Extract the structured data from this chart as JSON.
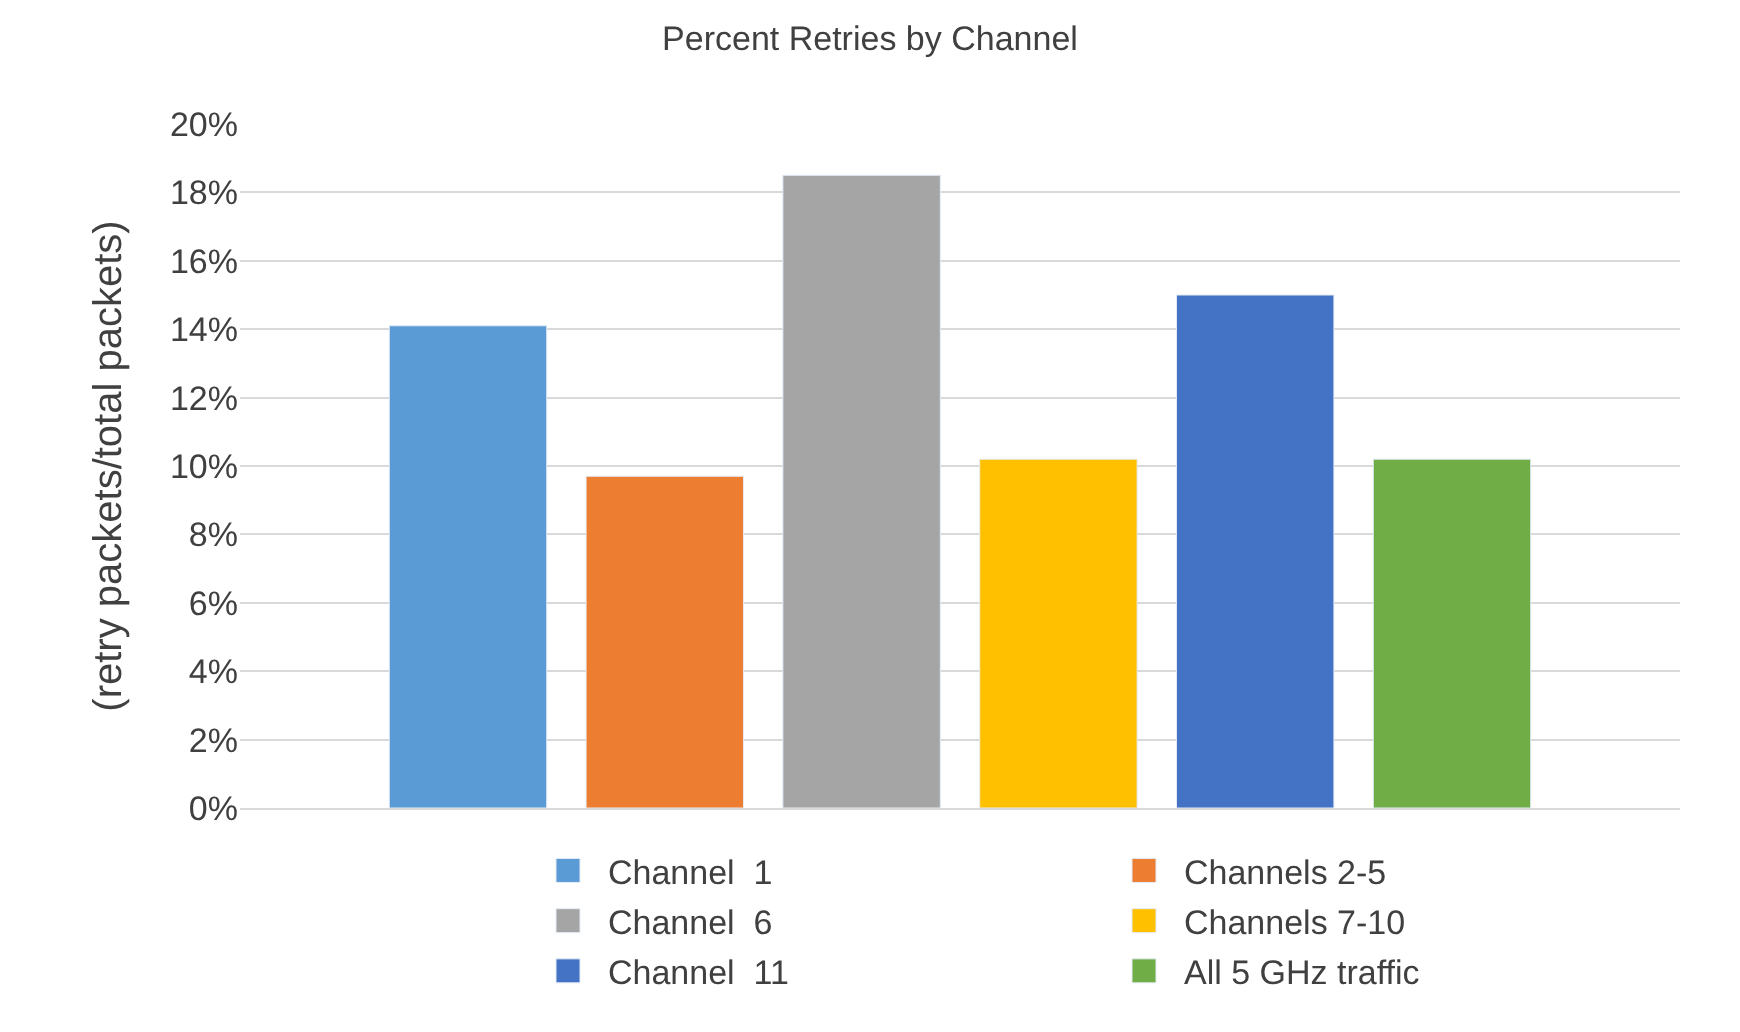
{
  "chart_data": {
    "type": "bar",
    "title": "Percent Retries by Channel",
    "ylabel": "(retry packets/total packets)",
    "categories": [
      null
    ],
    "series": [
      {
        "name": "Channel  1",
        "color": "#5b9bd5",
        "values": [
          14.1
        ]
      },
      {
        "name": "Channels 2-5",
        "color": "#ed7d31",
        "values": [
          9.7
        ]
      },
      {
        "name": "Channel  6",
        "color": "#a5a5a5",
        "values": [
          18.5
        ]
      },
      {
        "name": "Channels 7-10",
        "color": "#ffc000",
        "values": [
          10.2
        ]
      },
      {
        "name": "Channel  11",
        "color": "#4472c4",
        "values": [
          15.0
        ]
      },
      {
        "name": "All 5 GHz traffic",
        "color": "#70ad47",
        "values": [
          10.2
        ]
      }
    ],
    "ylim": [
      0,
      20
    ],
    "yticks": [
      {
        "value": 0,
        "label": "0%"
      },
      {
        "value": 2,
        "label": "2%"
      },
      {
        "value": 4,
        "label": "4%"
      },
      {
        "value": 6,
        "label": "6%"
      },
      {
        "value": 8,
        "label": "8%"
      },
      {
        "value": 10,
        "label": "10%"
      },
      {
        "value": 12,
        "label": "12%"
      },
      {
        "value": 14,
        "label": "14%"
      },
      {
        "value": 16,
        "label": "16%"
      },
      {
        "value": 18,
        "label": "18%"
      },
      {
        "value": 20,
        "label": "20%"
      }
    ],
    "grid": "y",
    "legend": "bottom"
  }
}
